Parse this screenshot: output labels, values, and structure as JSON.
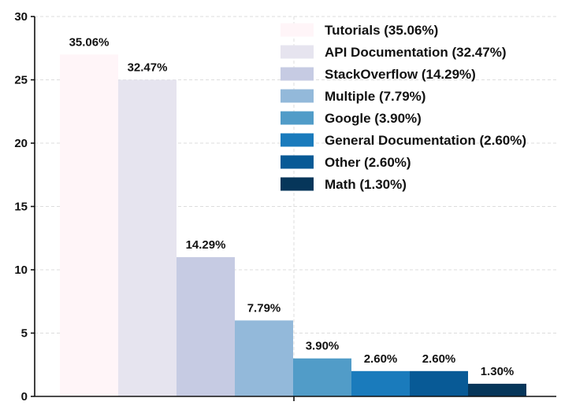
{
  "chart_data": {
    "type": "bar",
    "title": "",
    "xlabel": "",
    "ylabel": "",
    "ylim": [
      0,
      30
    ],
    "yticks": [
      0,
      5,
      10,
      15,
      20,
      25,
      30
    ],
    "grid": true,
    "legend_position": "top-right",
    "categories": [
      "Tutorials",
      "API Documentation",
      "StackOverflow",
      "Multiple",
      "Google",
      "General Documentation",
      "Other",
      "Math"
    ],
    "values": [
      27,
      25,
      11,
      6,
      3,
      2,
      2,
      1
    ],
    "data_labels": [
      "35.06%",
      "32.47%",
      "14.29%",
      "7.79%",
      "3.90%",
      "2.60%",
      "2.60%",
      "1.30%"
    ],
    "legend_labels": [
      "Tutorials (35.06%)",
      "API Documentation (32.47%)",
      "StackOverflow (14.29%)",
      "Multiple (7.79%)",
      "Google (3.90%)",
      "General Documentation (2.60%)",
      "Other (2.60%)",
      "Math (1.30%)"
    ],
    "colors": [
      "#fff5f8",
      "#e6e4ef",
      "#c6cbe3",
      "#93b9da",
      "#519cc8",
      "#1a7bbc",
      "#085a96",
      "#06365a"
    ]
  }
}
